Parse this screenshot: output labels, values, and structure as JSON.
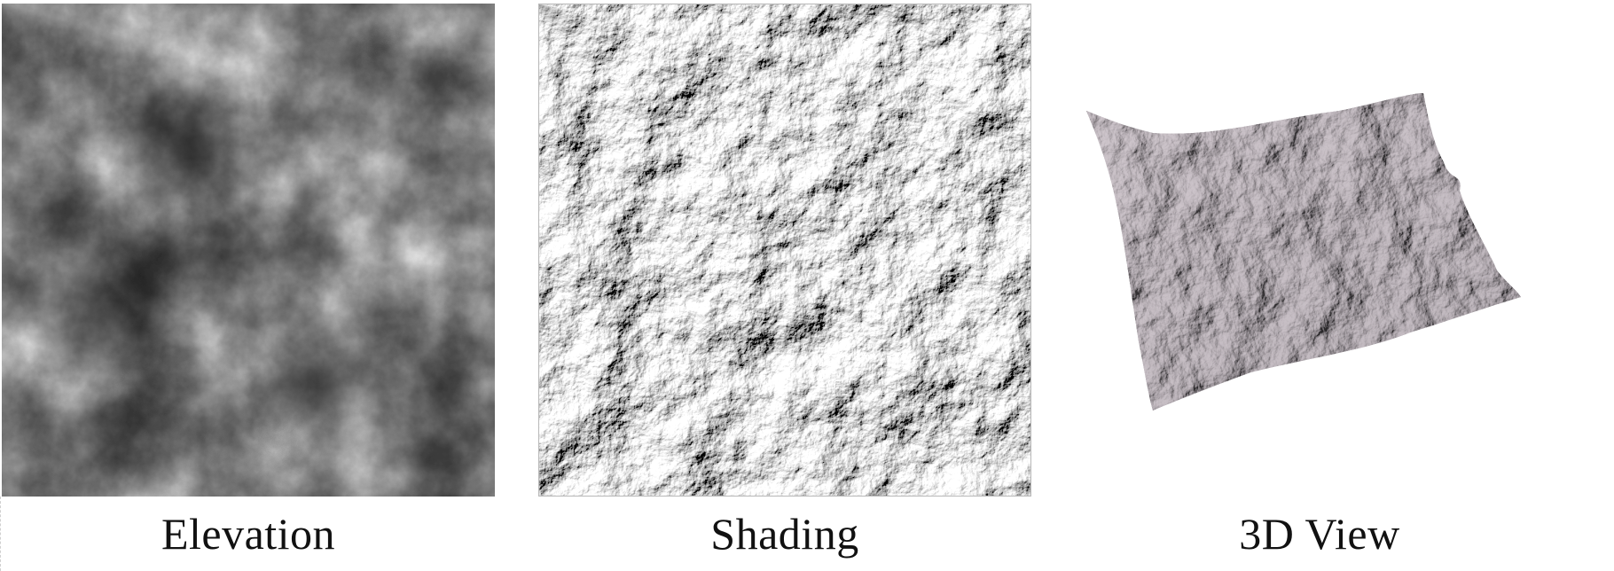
{
  "panels": [
    {
      "id": "elevation",
      "caption": "Elevation"
    },
    {
      "id": "shading",
      "caption": "Shading"
    },
    {
      "id": "view3d",
      "caption": "3D View"
    }
  ],
  "colors": {
    "elevation_low": "#141414",
    "elevation_high": "#e6e6e6",
    "shading_light": "#f2f2f2",
    "shading_dark": "#1a1a1a",
    "terrain_surface": "#a79fa5",
    "terrain_shadow": "#2a2a32"
  }
}
